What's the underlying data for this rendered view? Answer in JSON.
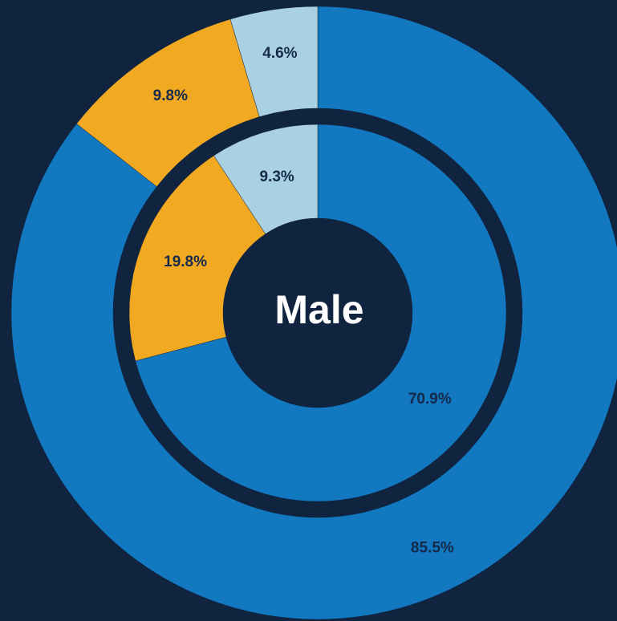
{
  "chart_data": {
    "type": "donut",
    "center_label": "Male",
    "series": [
      {
        "values": [
          85.5,
          9.8,
          4.6
        ],
        "value_labels": [
          "85.5%",
          "9.8%",
          "4.6%"
        ],
        "colors": [
          "#1278c0",
          "#f2a922",
          "#a9d1e1"
        ]
      },
      {
        "values": [
          70.9,
          19.8,
          9.3
        ],
        "value_labels": [
          "70.9%",
          "19.8%",
          "9.3%"
        ],
        "colors": [
          "#1278c0",
          "#f2a922",
          "#a9d1e1"
        ]
      }
    ]
  }
}
